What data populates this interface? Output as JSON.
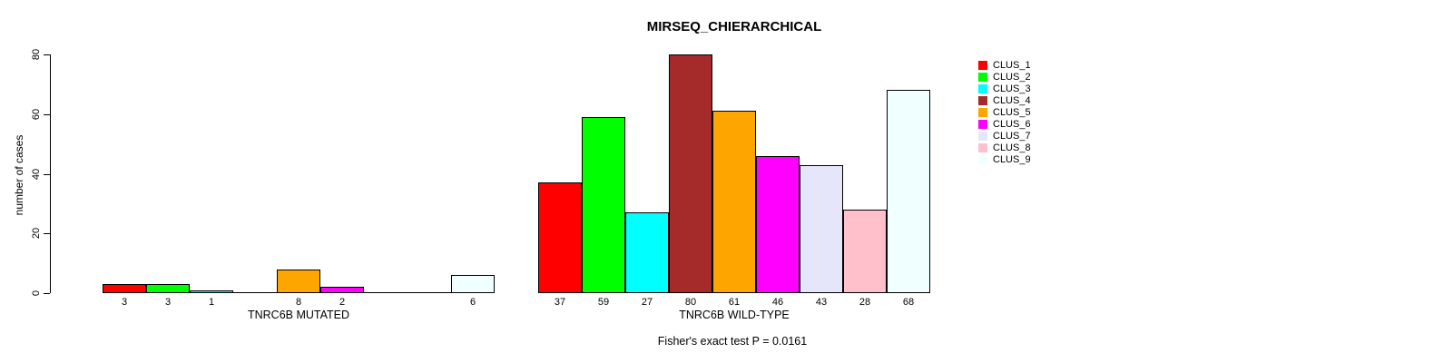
{
  "chart_data": {
    "type": "bar",
    "title": "MIRSEQ_CHIERARCHICAL",
    "ylabel": "number of cases",
    "xlabel": "",
    "ylim": [
      0,
      80
    ],
    "yticks": [
      0,
      20,
      40,
      60,
      80
    ],
    "grid": false,
    "legend_position": "right",
    "categories": [
      "CLUS_1",
      "CLUS_2",
      "CLUS_3",
      "CLUS_4",
      "CLUS_5",
      "CLUS_6",
      "CLUS_7",
      "CLUS_8",
      "CLUS_9"
    ],
    "colors": [
      "#FF0000",
      "#00FF00",
      "#00FFFF",
      "#A52A2A",
      "#FFA500",
      "#FF00FF",
      "#E6E6FA",
      "#FFC0CB",
      "#F0FFFF"
    ],
    "series": [
      {
        "name": "TNRC6B MUTATED",
        "values": [
          3,
          3,
          1,
          0,
          8,
          2,
          0,
          0,
          6
        ]
      },
      {
        "name": "TNRC6B WILD-TYPE",
        "values": [
          37,
          59,
          27,
          80,
          61,
          46,
          43,
          28,
          68
        ]
      }
    ],
    "bar_value_labels": {
      "TNRC6B MUTATED": [
        "3",
        "3",
        "1",
        "",
        "8",
        "2",
        "",
        "",
        "6"
      ],
      "TNRC6B WILD-TYPE": [
        "37",
        "59",
        "27",
        "80",
        "61",
        "46",
        "43",
        "28",
        "68"
      ]
    },
    "annotation": "Fisher's exact test P = 0.0161"
  }
}
